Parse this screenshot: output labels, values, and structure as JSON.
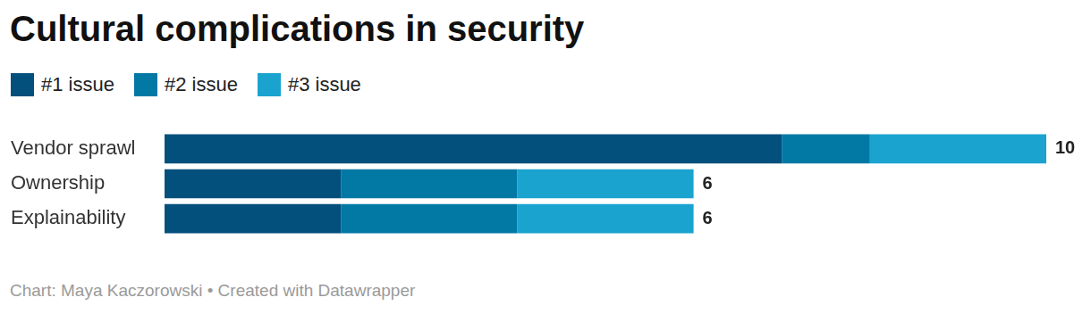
{
  "chart_data": {
    "type": "bar",
    "title": "Cultural complications in security",
    "categories": [
      "Vendor sprawl",
      "Ownership",
      "Explainability"
    ],
    "series": [
      {
        "name": "#1 issue",
        "color": "#03507c",
        "values": [
          7,
          2,
          2
        ]
      },
      {
        "name": "#2 issue",
        "color": "#0279a5",
        "values": [
          1,
          2,
          2
        ]
      },
      {
        "name": "#3 issue",
        "color": "#1ba3d0",
        "values": [
          2,
          2,
          2
        ]
      }
    ],
    "totals": [
      10,
      6,
      6
    ],
    "xlim": [
      0,
      10
    ],
    "orientation": "horizontal",
    "stacked": true,
    "grid": false,
    "legend": "top-left",
    "tick_labels": "y",
    "source": "Chart: Maya Kaczorowski • Created with Datawrapper"
  }
}
